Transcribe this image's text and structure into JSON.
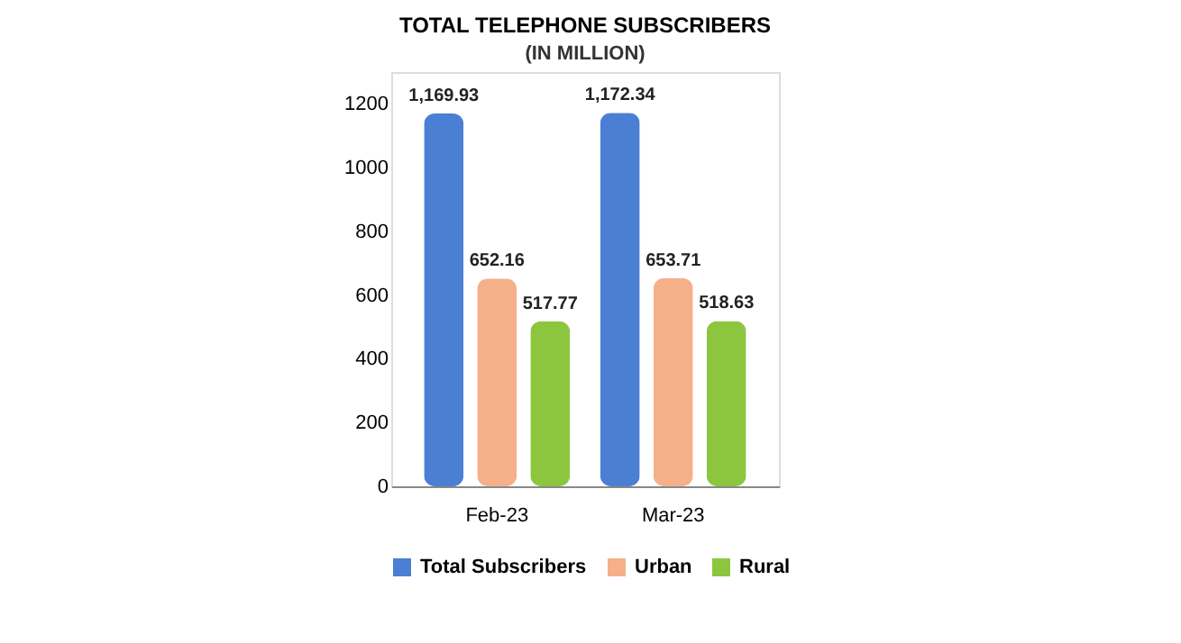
{
  "chart_data": {
    "type": "bar",
    "title": "TOTAL TELEPHONE SUBSCRIBERS",
    "subtitle": "(IN MILLION)",
    "categories": [
      "Feb-23",
      "Mar-23"
    ],
    "series": [
      {
        "name": "Total Subscribers",
        "color": "#4a7fd4",
        "values": [
          1169.93,
          1172.34
        ],
        "value_labels": [
          "1,169.93",
          "1,172.34"
        ]
      },
      {
        "name": "Urban",
        "color": "#f5b08a",
        "values": [
          652.16,
          653.71
        ],
        "value_labels": [
          "652.16",
          "653.71"
        ]
      },
      {
        "name": "Rural",
        "color": "#8cc63f",
        "values": [
          517.77,
          518.63
        ],
        "value_labels": [
          "517.77",
          "518.63"
        ]
      }
    ],
    "ylim": [
      0,
      1300
    ],
    "yticks": [
      0,
      200,
      400,
      600,
      800,
      1000,
      1200
    ],
    "grid": false,
    "legend": "bottom",
    "data_labels": true
  }
}
